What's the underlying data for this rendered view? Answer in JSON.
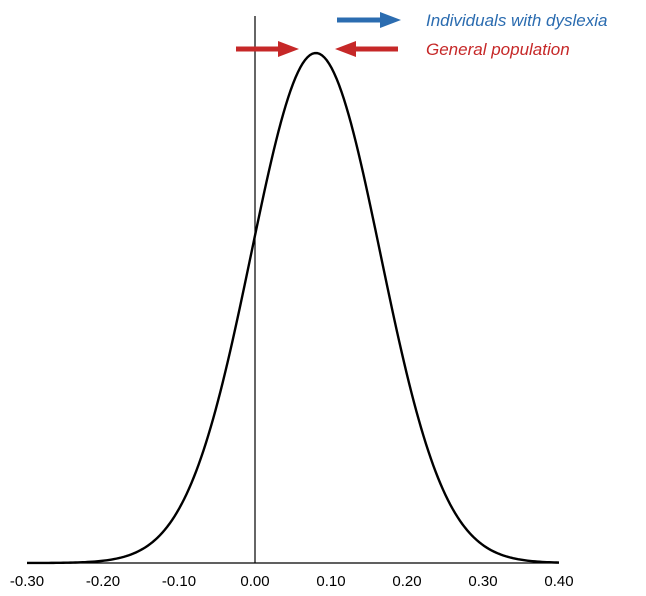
{
  "chart_data": {
    "type": "line",
    "title": "",
    "xlabel": "",
    "ylabel": "",
    "xlim": [
      -0.3,
      0.4
    ],
    "x_ticks": [
      "-0.30",
      "-0.20",
      "-0.10",
      "0.00",
      "0.10",
      "0.20",
      "0.30",
      "0.40"
    ],
    "x_tick_values": [
      -0.3,
      -0.2,
      -0.1,
      0.0,
      0.1,
      0.2,
      0.3,
      0.4
    ],
    "grid": false,
    "vertical_reference_line": 0.0,
    "series": [
      {
        "description": "normal density curve",
        "mean": 0.08,
        "sd": 0.085,
        "color": "#000000"
      }
    ],
    "legend": {
      "placement": "top-right",
      "items": [
        {
          "label": "Individuals with dyslexia",
          "color": "#2b6cb0",
          "arrow": "right"
        },
        {
          "label": "General population",
          "color": "#c62828",
          "arrow": "converging"
        }
      ]
    }
  }
}
